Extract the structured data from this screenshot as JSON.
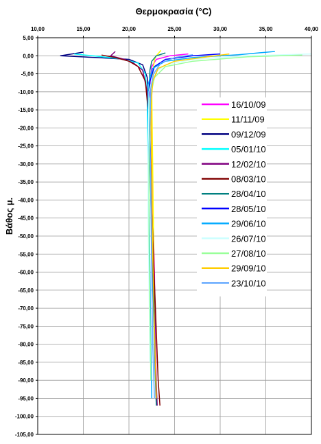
{
  "chart_data": {
    "type": "line",
    "title": "Θερμοκρασία (°C)",
    "xlabel": "",
    "ylabel": "Βάθος μ.",
    "xlim": [
      10,
      40
    ],
    "ylim": [
      -105,
      5
    ],
    "x_axis_position": "top",
    "grid": true,
    "legend_position": "middle-right",
    "x_ticks": [
      "10,00",
      "15,00",
      "20,00",
      "25,00",
      "30,00",
      "35,00",
      "40,00"
    ],
    "y_ticks": [
      "5,00",
      "0,00",
      "-5,00",
      "-10,00",
      "-15,00",
      "-20,00",
      "-25,00",
      "-30,00",
      "-35,00",
      "-40,00",
      "-45,00",
      "-50,00",
      "-55,00",
      "-60,00",
      "-65,00",
      "-70,00",
      "-75,00",
      "-80,00",
      "-85,00",
      "-90,00",
      "-95,00",
      "-100,00",
      "-105,00"
    ],
    "series": [
      {
        "name": "16/10/09",
        "color": "#ff00ff",
        "points": [
          [
            26.5,
            0.5
          ],
          [
            24.5,
            0
          ],
          [
            23.0,
            -1
          ],
          [
            22.5,
            -3
          ],
          [
            22.3,
            -8
          ],
          [
            22.5,
            -20
          ],
          [
            22.6,
            -40
          ],
          [
            22.8,
            -60
          ],
          [
            22.9,
            -80
          ],
          [
            23.0,
            -90
          ]
        ]
      },
      {
        "name": "11/11/09",
        "color": "#ffff00",
        "points": [
          [
            23.5,
            1.5
          ],
          [
            23.0,
            0
          ],
          [
            22.8,
            -1
          ],
          [
            22.6,
            -5
          ],
          [
            22.5,
            -10
          ],
          [
            22.6,
            -30
          ],
          [
            22.7,
            -50
          ],
          [
            22.8,
            -70
          ],
          [
            22.9,
            -90
          ]
        ]
      },
      {
        "name": "09/12/09",
        "color": "#000080",
        "points": [
          [
            15.0,
            1.0
          ],
          [
            12.5,
            0
          ],
          [
            16.5,
            -0.5
          ],
          [
            20.0,
            -1.0
          ],
          [
            21.5,
            -2.5
          ],
          [
            22.0,
            -6
          ],
          [
            22.2,
            -15
          ],
          [
            22.4,
            -30
          ],
          [
            22.6,
            -50
          ],
          [
            22.8,
            -70
          ],
          [
            22.9,
            -85
          ],
          [
            23.0,
            -96
          ]
        ]
      },
      {
        "name": "05/01/10",
        "color": "#00ffff",
        "points": [
          [
            14.0,
            0.5
          ],
          [
            16.0,
            0
          ],
          [
            19.0,
            -0.8
          ],
          [
            21.0,
            -2.0
          ],
          [
            21.8,
            -5
          ],
          [
            22.0,
            -12
          ],
          [
            22.1,
            -30
          ],
          [
            22.2,
            -50
          ],
          [
            22.3,
            -70
          ],
          [
            22.4,
            -85
          ]
        ]
      },
      {
        "name": "12/02/10",
        "color": "#800080",
        "points": [
          [
            18.5,
            1.2
          ],
          [
            18.0,
            0
          ],
          [
            19.5,
            -1
          ],
          [
            20.5,
            -2
          ],
          [
            21.5,
            -4
          ],
          [
            22.0,
            -10
          ],
          [
            22.3,
            -25
          ],
          [
            22.5,
            -45
          ],
          [
            22.7,
            -65
          ],
          [
            22.9,
            -85
          ],
          [
            23.1,
            -97
          ]
        ]
      },
      {
        "name": "08/03/10",
        "color": "#800000",
        "points": [
          [
            17.0,
            0.2
          ],
          [
            18.5,
            -0.5
          ],
          [
            20.0,
            -1.5
          ],
          [
            21.0,
            -3
          ],
          [
            21.8,
            -7
          ],
          [
            22.1,
            -15
          ],
          [
            22.4,
            -30
          ],
          [
            22.6,
            -50
          ],
          [
            22.9,
            -70
          ],
          [
            23.2,
            -90
          ],
          [
            23.4,
            -97
          ]
        ]
      },
      {
        "name": "28/04/10",
        "color": "#008080",
        "points": [
          [
            24.0,
            0.8
          ],
          [
            23.0,
            0
          ],
          [
            22.5,
            -1.5
          ],
          [
            22.3,
            -4
          ],
          [
            22.2,
            -10
          ],
          [
            22.3,
            -30
          ],
          [
            22.5,
            -50
          ],
          [
            22.7,
            -70
          ],
          [
            22.9,
            -90
          ],
          [
            23.0,
            -97
          ]
        ]
      },
      {
        "name": "28/05/10",
        "color": "#0000ff",
        "points": [
          [
            30.0,
            0.5
          ],
          [
            27.0,
            0
          ],
          [
            24.0,
            -1
          ],
          [
            22.8,
            -3
          ],
          [
            22.3,
            -7
          ],
          [
            22.2,
            -15
          ],
          [
            22.4,
            -35
          ],
          [
            22.6,
            -55
          ],
          [
            22.8,
            -75
          ],
          [
            23.0,
            -95
          ]
        ]
      },
      {
        "name": "29/06/10",
        "color": "#00aaff",
        "points": [
          [
            36.0,
            1.2
          ],
          [
            32.0,
            0.3
          ],
          [
            27.0,
            -0.5
          ],
          [
            24.0,
            -1.5
          ],
          [
            22.6,
            -3.5
          ],
          [
            22.1,
            -8
          ],
          [
            22.1,
            -20
          ],
          [
            22.2,
            -40
          ],
          [
            22.3,
            -60
          ],
          [
            22.4,
            -80
          ],
          [
            22.5,
            -95
          ]
        ]
      },
      {
        "name": "26/07/10",
        "color": "#ccffff",
        "points": [
          [
            40.0,
            0.5
          ],
          [
            33.0,
            0
          ],
          [
            27.0,
            -1
          ],
          [
            24.0,
            -2.5
          ],
          [
            22.7,
            -5
          ],
          [
            22.2,
            -10
          ],
          [
            22.1,
            -25
          ],
          [
            22.1,
            -45
          ],
          [
            22.2,
            -65
          ],
          [
            22.3,
            -85
          ]
        ]
      },
      {
        "name": "27/08/10",
        "color": "#99ff99",
        "points": [
          [
            39.0,
            0.2
          ],
          [
            33.0,
            -0.3
          ],
          [
            27.0,
            -1.5
          ],
          [
            24.0,
            -3
          ],
          [
            22.8,
            -6
          ],
          [
            22.3,
            -12
          ],
          [
            22.2,
            -30
          ],
          [
            22.2,
            -50
          ],
          [
            22.3,
            -70
          ],
          [
            22.4,
            -90
          ]
        ]
      },
      {
        "name": "29/09/10",
        "color": "#ffcc00",
        "points": [
          [
            31.0,
            0.5
          ],
          [
            28.0,
            -0.5
          ],
          [
            25.0,
            -1.5
          ],
          [
            23.2,
            -3.5
          ],
          [
            22.6,
            -7
          ],
          [
            22.4,
            -15
          ],
          [
            22.5,
            -35
          ],
          [
            22.6,
            -55
          ],
          [
            22.8,
            -75
          ],
          [
            23.0,
            -95
          ]
        ]
      },
      {
        "name": "23/10/10",
        "color": "#66aaff",
        "points": [
          [
            27.0,
            0.3
          ],
          [
            25.0,
            -0.5
          ],
          [
            23.5,
            -2
          ],
          [
            22.7,
            -5
          ],
          [
            22.4,
            -9
          ],
          [
            22.3,
            -20
          ],
          [
            22.4,
            -40
          ],
          [
            22.5,
            -60
          ],
          [
            22.6,
            -80
          ],
          [
            22.8,
            -95
          ]
        ]
      }
    ]
  }
}
